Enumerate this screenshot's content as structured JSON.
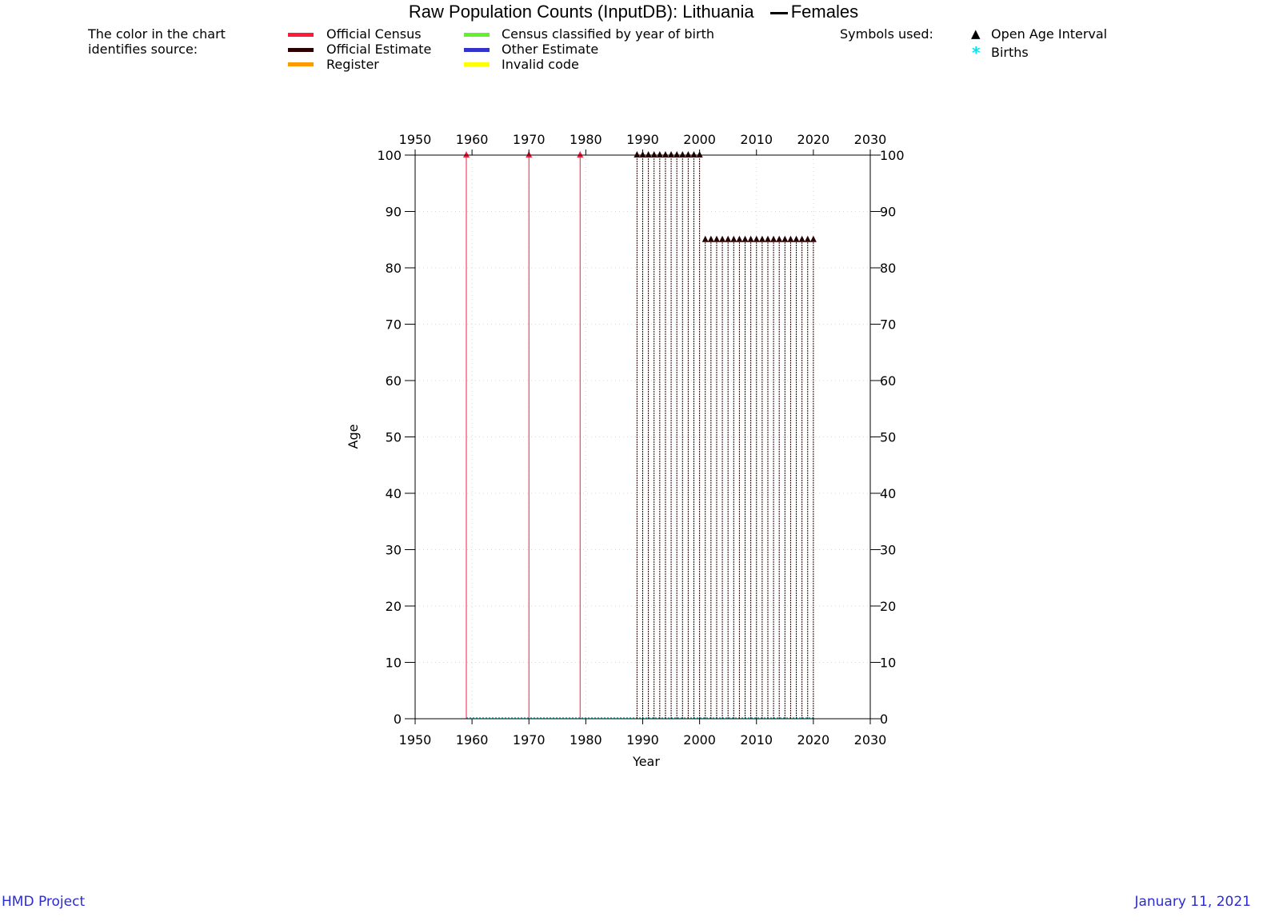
{
  "title": {
    "main": "Raw Population Counts (InputDB): Lithuania",
    "series_label": "Females"
  },
  "legend": {
    "source_label_line1": "The color in the chart",
    "source_label_line2": "identifies source:",
    "sources": [
      {
        "label": "Official Census",
        "color": "#ff1a3c"
      },
      {
        "label": "Official Estimate",
        "color": "#2a0000"
      },
      {
        "label": "Register",
        "color": "#ff9900"
      },
      {
        "label": "Census classified by year of birth",
        "color": "#66ee33"
      },
      {
        "label": "Other Estimate",
        "color": "#3333cc"
      },
      {
        "label": "Invalid code",
        "color": "#ffff00"
      }
    ],
    "symbols_label": "Symbols used:",
    "symbols": [
      {
        "label": "Open Age Interval",
        "glyph": "▲"
      },
      {
        "label": "Births",
        "glyph": "*"
      }
    ]
  },
  "footer": {
    "left": "HMD Project",
    "right": "January 11, 2021"
  },
  "chart_data": {
    "type": "scatter",
    "title": "Raw Population Counts (InputDB): Lithuania",
    "xlabel": "Year",
    "ylabel": "Age",
    "xlim": [
      1950,
      2030
    ],
    "ylim": [
      0,
      100
    ],
    "x_ticks": [
      1950,
      1960,
      1970,
      1980,
      1990,
      2000,
      2010,
      2020,
      2030
    ],
    "y_ticks": [
      0,
      10,
      20,
      30,
      40,
      50,
      60,
      70,
      80,
      90,
      100
    ],
    "series": [
      {
        "name": "Official Census",
        "color": "#ff1a3c",
        "years": [
          1959,
          1970,
          1979
        ],
        "open_age": [
          100,
          100,
          100
        ]
      },
      {
        "name": "Official Estimate",
        "color": "#2a0000",
        "years": [
          1989,
          1990,
          1991,
          1992,
          1993,
          1994,
          1995,
          1996,
          1997,
          1998,
          1999,
          2000,
          2001,
          2002,
          2003,
          2004,
          2005,
          2006,
          2007,
          2008,
          2009,
          2010,
          2011,
          2012,
          2013,
          2014,
          2015,
          2016,
          2017,
          2018,
          2019,
          2020
        ],
        "open_age": [
          100,
          100,
          100,
          100,
          100,
          100,
          100,
          100,
          100,
          100,
          100,
          100,
          85,
          85,
          85,
          85,
          85,
          85,
          85,
          85,
          85,
          85,
          85,
          85,
          85,
          85,
          85,
          85,
          85,
          85,
          85,
          85
        ]
      },
      {
        "name": "Births",
        "color": "#00e5ee",
        "years_from": 1959,
        "years_to": 2020,
        "age": 0
      }
    ]
  }
}
